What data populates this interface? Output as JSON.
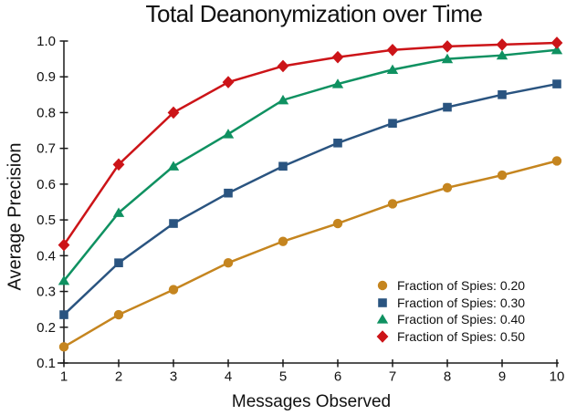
{
  "chart_data": {
    "type": "line",
    "title": "Total Deanonymization over Time",
    "xlabel": "Messages Observed",
    "ylabel": "Average Precision",
    "x": [
      1,
      2,
      3,
      4,
      5,
      6,
      7,
      8,
      9,
      10
    ],
    "xlim": [
      1,
      10
    ],
    "ylim": [
      0.1,
      1.0
    ],
    "x_ticks": [
      "1",
      "2",
      "3",
      "4",
      "5",
      "6",
      "7",
      "8",
      "9",
      "10"
    ],
    "y_ticks": [
      "0.1",
      "0.2",
      "0.3",
      "0.4",
      "0.5",
      "0.6",
      "0.7",
      "0.8",
      "0.9",
      "1.0"
    ],
    "grid": false,
    "legend_position": "lower right",
    "legend_frame": false,
    "axis_color": "#1a1a1a",
    "text_color": "#111111",
    "series": [
      {
        "name": "Fraction of Spies: 0.20",
        "marker": "circle",
        "color": "#C5851F",
        "values": [
          0.145,
          0.235,
          0.305,
          0.38,
          0.44,
          0.49,
          0.545,
          0.59,
          0.625,
          0.665
        ]
      },
      {
        "name": "Fraction of Spies: 0.30",
        "marker": "square",
        "color": "#2A5480",
        "values": [
          0.235,
          0.38,
          0.49,
          0.575,
          0.65,
          0.715,
          0.77,
          0.815,
          0.85,
          0.88
        ]
      },
      {
        "name": "Fraction of Spies: 0.40",
        "marker": "triangle",
        "color": "#0F9161",
        "values": [
          0.33,
          0.52,
          0.65,
          0.74,
          0.835,
          0.88,
          0.92,
          0.95,
          0.96,
          0.975
        ]
      },
      {
        "name": "Fraction of Spies: 0.50",
        "marker": "diamond",
        "color": "#CC1418",
        "values": [
          0.43,
          0.655,
          0.8,
          0.885,
          0.93,
          0.955,
          0.975,
          0.985,
          0.99,
          0.995
        ]
      }
    ]
  }
}
